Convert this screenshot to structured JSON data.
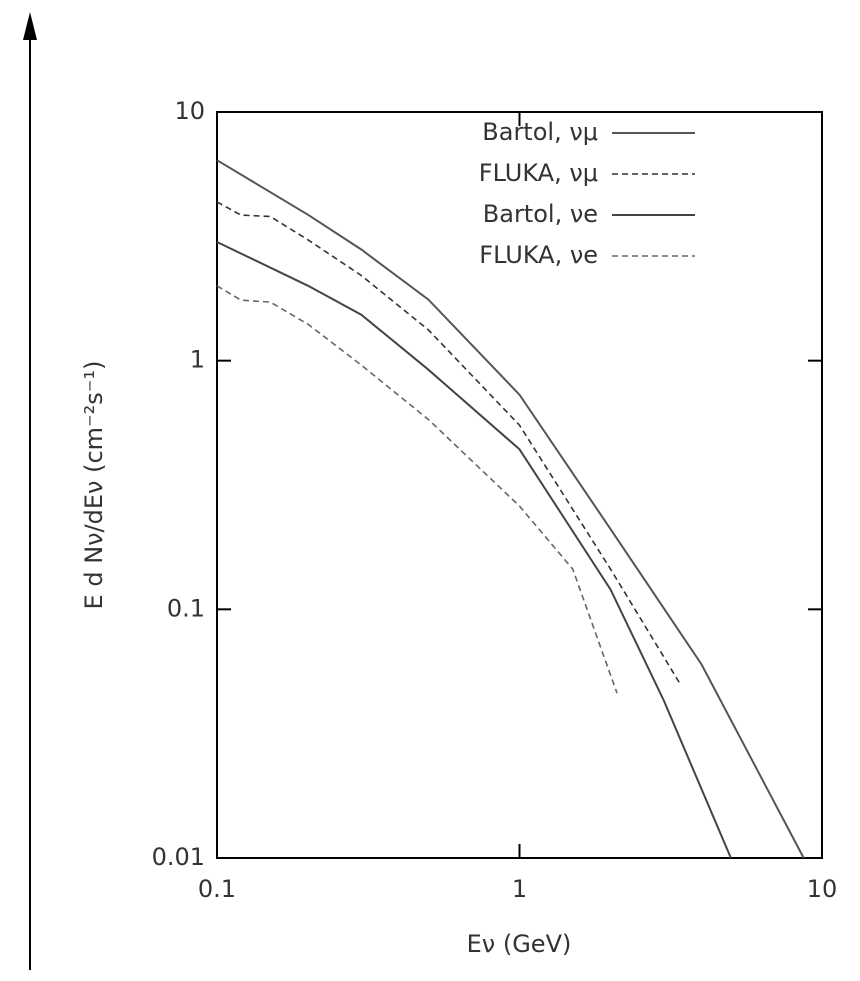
{
  "chart_data": {
    "type": "line",
    "xlabel": "Eν   (GeV)",
    "ylabel": "E d Nν/dEν     (cm⁻²s⁻¹)",
    "xscale": "log",
    "yscale": "log",
    "xlim": [
      0.1,
      10
    ],
    "ylim": [
      0.01,
      10
    ],
    "xticks": [
      0.1,
      1,
      10
    ],
    "yticks": [
      0.01,
      0.1,
      1,
      10
    ],
    "legend": "upper right",
    "series": [
      {
        "name": "Bartol, νμ",
        "color": "#555555",
        "dash": false,
        "x": [
          0.1,
          0.2,
          0.3,
          0.5,
          1,
          2,
          4,
          8.7
        ],
        "values": [
          6.4,
          3.86,
          2.8,
          1.76,
          0.73,
          0.21,
          0.06,
          0.01
        ]
      },
      {
        "name": "FLUKA, νμ",
        "color": "#333333",
        "dash": true,
        "x": [
          0.1,
          0.12,
          0.15,
          0.2,
          0.3,
          0.5,
          1,
          2,
          3.4
        ],
        "values": [
          4.35,
          3.85,
          3.8,
          3.06,
          2.2,
          1.33,
          0.55,
          0.145,
          0.05
        ]
      },
      {
        "name": "Bartol, νe",
        "color": "#444444",
        "dash": false,
        "x": [
          0.1,
          0.2,
          0.3,
          0.5,
          1,
          2,
          3,
          5
        ],
        "values": [
          3.0,
          2.0,
          1.53,
          0.92,
          0.44,
          0.12,
          0.043,
          0.01
        ]
      },
      {
        "name": "FLUKA, νe",
        "color": "#666666",
        "dash": true,
        "x": [
          0.1,
          0.12,
          0.15,
          0.2,
          0.3,
          0.5,
          1,
          1.5,
          2.1
        ],
        "values": [
          2.0,
          1.75,
          1.72,
          1.4,
          0.96,
          0.58,
          0.26,
          0.145,
          0.046
        ]
      }
    ]
  }
}
